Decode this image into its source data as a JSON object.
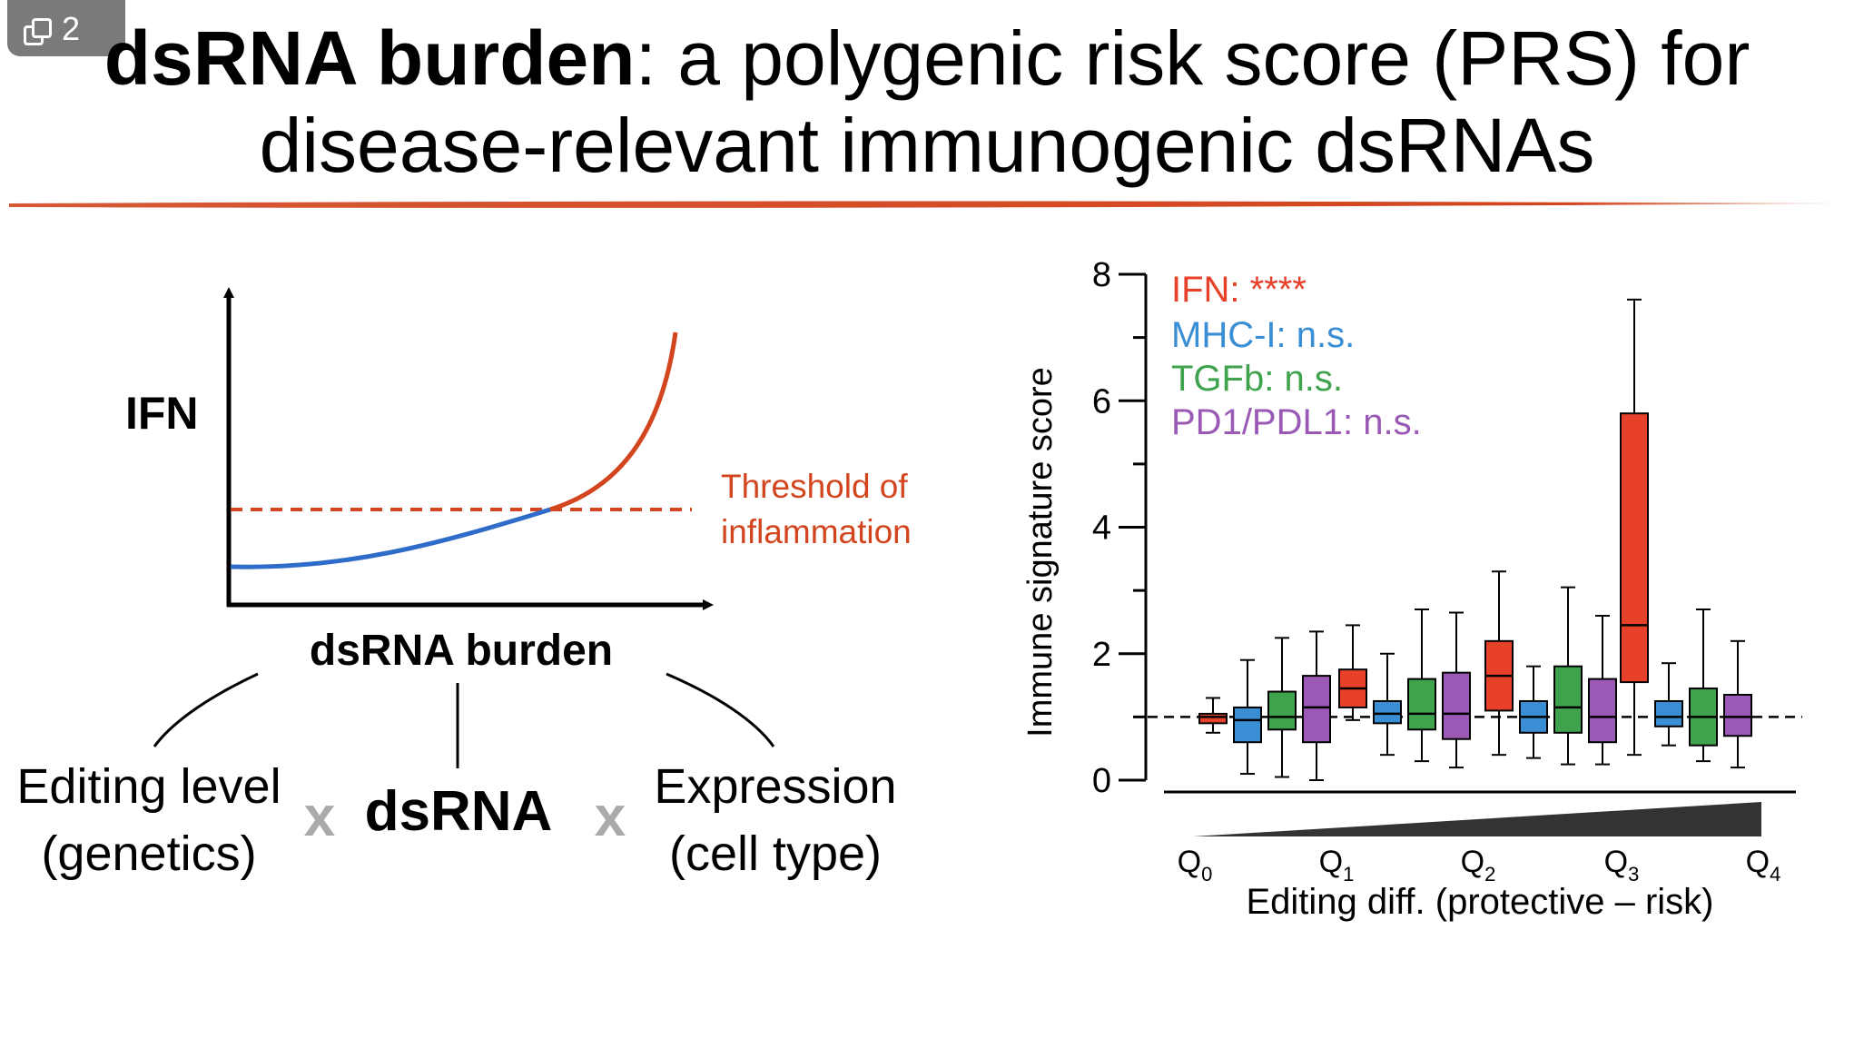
{
  "badge": {
    "count": "2"
  },
  "title": {
    "bold": "dsRNA burden",
    "rest": ": a polygenic risk score (PRS) for",
    "line2": "disease-relevant immunogenic dsRNAs"
  },
  "colors": {
    "accent": "#d2451e",
    "ifn": "#e8412a",
    "mhc": "#3a8ed3",
    "tgfb": "#3fa34d",
    "pd1": "#9b59b6",
    "blue_curve": "#2f6cc9",
    "gray_x": "#aaaaaa"
  },
  "left_diagram": {
    "y_axis_label": "IFN",
    "threshold_line1": "Threshold of",
    "threshold_line2": "inflammation",
    "x_axis_label": "dsRNA burden",
    "factor1_line1": "Editing level",
    "factor1_line2": "(genetics)",
    "times": "x",
    "factor2": "dsRNA",
    "factor3_line1": "Expression",
    "factor3_line2": "(cell type)"
  },
  "chart_data": {
    "type": "box",
    "ylabel": "Immune signature score",
    "xlabel": "Editing diff. (protective – risk)",
    "ylim": [
      0,
      8
    ],
    "yticks": [
      0,
      2,
      4,
      6,
      8
    ],
    "reference_line": 1,
    "quantile_labels": [
      {
        "base": "Q",
        "sub": "0"
      },
      {
        "base": "Q",
        "sub": "1"
      },
      {
        "base": "Q",
        "sub": "2"
      },
      {
        "base": "Q",
        "sub": "3"
      },
      {
        "base": "Q",
        "sub": "4"
      }
    ],
    "legend": [
      {
        "name": "IFN",
        "stat": "****",
        "color": "#e8412a"
      },
      {
        "name": "MHC-I",
        "stat": "n.s.",
        "color": "#3a8ed3"
      },
      {
        "name": "TGFb",
        "stat": "n.s.",
        "color": "#3fa34d"
      },
      {
        "name": "PD1/PDL1",
        "stat": "n.s.",
        "color": "#9b59b6"
      }
    ],
    "groups": [
      {
        "label": "Q0–Q1",
        "boxes": [
          {
            "series": "IFN",
            "color": "#e8412a",
            "min": 0.75,
            "q1": 0.9,
            "median": 1.0,
            "q3": 1.05,
            "max": 1.3
          },
          {
            "series": "MHC-I",
            "color": "#3a8ed3",
            "min": 0.1,
            "q1": 0.6,
            "median": 0.95,
            "q3": 1.15,
            "max": 1.9
          },
          {
            "series": "TGFb",
            "color": "#3fa34d",
            "min": 0.05,
            "q1": 0.8,
            "median": 1.0,
            "q3": 1.4,
            "max": 2.25
          },
          {
            "series": "PD1/PDL1",
            "color": "#9b59b6",
            "min": 0.0,
            "q1": 0.6,
            "median": 1.15,
            "q3": 1.65,
            "max": 2.35
          }
        ]
      },
      {
        "label": "Q1–Q2",
        "boxes": [
          {
            "series": "IFN",
            "color": "#e8412a",
            "min": 0.95,
            "q1": 1.15,
            "median": 1.45,
            "q3": 1.75,
            "max": 2.45
          },
          {
            "series": "MHC-I",
            "color": "#3a8ed3",
            "min": 0.4,
            "q1": 0.9,
            "median": 1.05,
            "q3": 1.25,
            "max": 2.0
          },
          {
            "series": "TGFb",
            "color": "#3fa34d",
            "min": 0.3,
            "q1": 0.8,
            "median": 1.05,
            "q3": 1.6,
            "max": 2.7
          },
          {
            "series": "PD1/PDL1",
            "color": "#9b59b6",
            "min": 0.2,
            "q1": 0.65,
            "median": 1.05,
            "q3": 1.7,
            "max": 2.65
          }
        ]
      },
      {
        "label": "Q2–Q3",
        "boxes": [
          {
            "series": "IFN",
            "color": "#e8412a",
            "min": 0.4,
            "q1": 1.1,
            "median": 1.65,
            "q3": 2.2,
            "max": 3.3
          },
          {
            "series": "MHC-I",
            "color": "#3a8ed3",
            "min": 0.35,
            "q1": 0.75,
            "median": 1.0,
            "q3": 1.25,
            "max": 1.8
          },
          {
            "series": "TGFb",
            "color": "#3fa34d",
            "min": 0.25,
            "q1": 0.75,
            "median": 1.15,
            "q3": 1.8,
            "max": 3.05
          },
          {
            "series": "PD1/PDL1",
            "color": "#9b59b6",
            "min": 0.25,
            "q1": 0.6,
            "median": 1.0,
            "q3": 1.6,
            "max": 2.6
          }
        ]
      },
      {
        "label": "Q3–Q4",
        "boxes": [
          {
            "series": "IFN",
            "color": "#e8412a",
            "min": 0.4,
            "q1": 1.55,
            "median": 2.45,
            "q3": 5.8,
            "max": 7.6
          },
          {
            "series": "MHC-I",
            "color": "#3a8ed3",
            "min": 0.55,
            "q1": 0.85,
            "median": 1.0,
            "q3": 1.25,
            "max": 1.85
          },
          {
            "series": "TGFb",
            "color": "#3fa34d",
            "min": 0.3,
            "q1": 0.55,
            "median": 1.0,
            "q3": 1.45,
            "max": 2.7
          },
          {
            "series": "PD1/PDL1",
            "color": "#9b59b6",
            "min": 0.2,
            "q1": 0.7,
            "median": 1.0,
            "q3": 1.35,
            "max": 2.2
          }
        ]
      }
    ]
  }
}
